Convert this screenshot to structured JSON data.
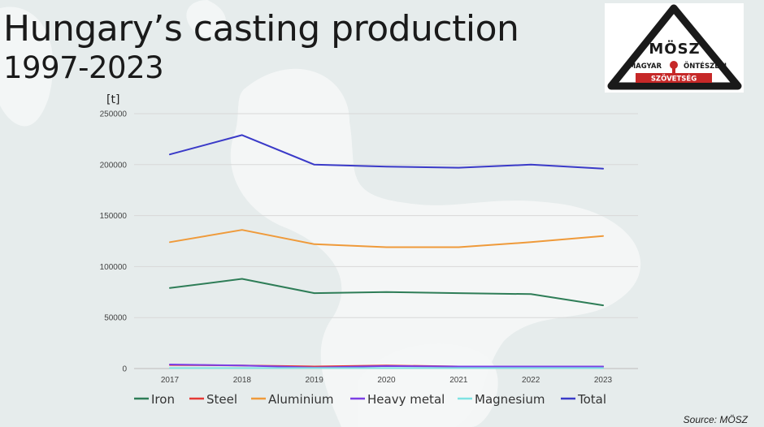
{
  "title": {
    "line1": "Hungary’s casting production",
    "line2": "1997-2023"
  },
  "logo": {
    "monogram": "MÖSZ",
    "word_left": "MAGYAR",
    "word_right": "ÖNTÉSZETI",
    "word_bottom": "SZÖVETSÉG"
  },
  "source": "Source: MÖSZ",
  "chart_data": {
    "type": "line",
    "title": "Hungary’s casting production 1997-2023",
    "xlabel": "",
    "ylabel": "[t]",
    "x": [
      "2017",
      "2018",
      "2019",
      "2020",
      "2021",
      "2022",
      "2023"
    ],
    "ylim": [
      0,
      250000
    ],
    "yticks": [
      0,
      50000,
      100000,
      150000,
      200000,
      250000
    ],
    "ytick_labels": [
      "0",
      "50000",
      "100000",
      "150000",
      "200000",
      "250000"
    ],
    "grid": true,
    "legend": "bottom",
    "series": [
      {
        "name": "Iron",
        "color": "#2e7d57",
        "values": [
          79000,
          88000,
          74000,
          75000,
          74000,
          73000,
          62000
        ]
      },
      {
        "name": "Steel",
        "color": "#e53935",
        "values": [
          3500,
          3000,
          2000,
          3000,
          2000,
          2000,
          2000
        ]
      },
      {
        "name": "Aluminium",
        "color": "#ef9a3a",
        "values": [
          124000,
          136000,
          122000,
          119000,
          119000,
          124000,
          130000
        ]
      },
      {
        "name": "Heavy metal",
        "color": "#7b3fe4",
        "values": [
          4000,
          3000,
          1000,
          2500,
          2000,
          2000,
          2000
        ]
      },
      {
        "name": "Magnesium",
        "color": "#7fe3e3",
        "values": [
          500,
          500,
          500,
          500,
          500,
          500,
          500
        ]
      },
      {
        "name": "Total",
        "color": "#3a3ac8",
        "values": [
          210000,
          229000,
          200000,
          198000,
          197000,
          200000,
          196000
        ]
      }
    ]
  }
}
